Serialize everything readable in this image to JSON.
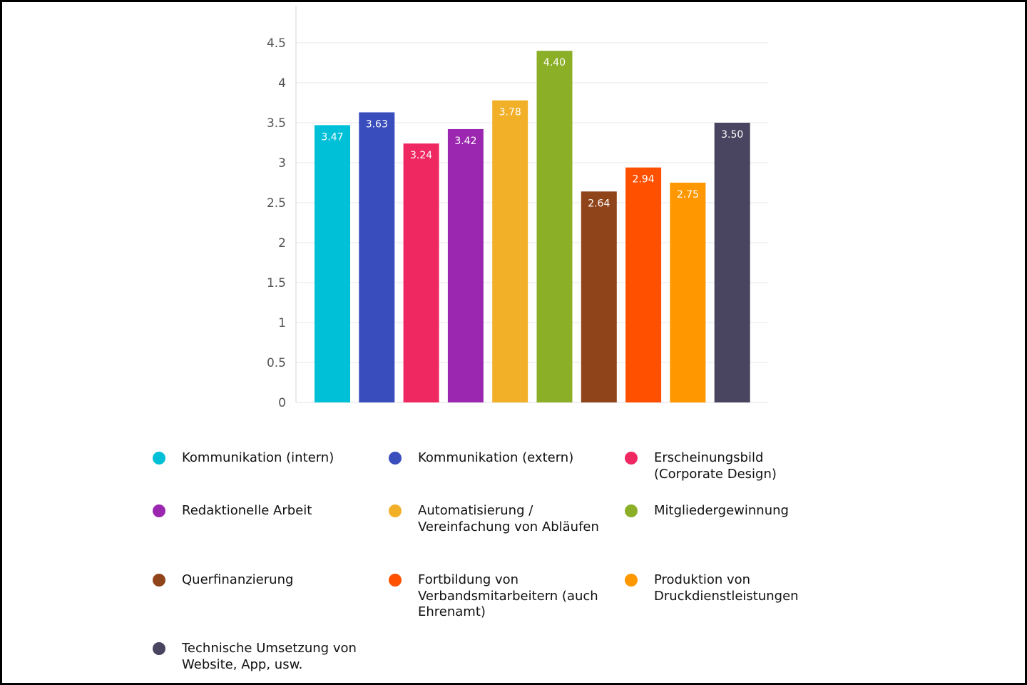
{
  "chart_data": {
    "type": "bar",
    "title": "",
    "xlabel": "",
    "ylabel": "",
    "ylim": [
      0,
      4.9
    ],
    "yticks": [
      0,
      0.5,
      1,
      1.5,
      2,
      2.5,
      3,
      3.5,
      4,
      4.5
    ],
    "ytick_labels": [
      "0",
      "0.5",
      "1",
      "1.5",
      "2",
      "2.5",
      "3",
      "3.5",
      "4",
      "4.5"
    ],
    "grid": true,
    "legend_position": "bottom",
    "categories": [
      "Kommunikation (intern)",
      "Kommunikation (extern)",
      "Erscheinungsbild (Corporate Design)",
      "Redaktionelle Arbeit",
      "Automatisierung / Vereinfachung von Abläufen",
      "Mitgliedergewinnung",
      "Querfinanzierung",
      "Fortbildung von Verbandsmitarbeitern (auch Ehrenamt)",
      "Produktion von Druckdienstleistungen",
      "Technische Umsetzung von Website, App, usw."
    ],
    "values": [
      3.47,
      3.63,
      3.24,
      3.42,
      3.78,
      4.4,
      2.64,
      2.94,
      2.75,
      3.5
    ],
    "value_labels": [
      "3.47",
      "3.63",
      "3.24",
      "3.42",
      "3.78",
      "4.40",
      "2.64",
      "2.94",
      "2.75",
      "3.50"
    ],
    "colors": [
      "#00c0d8",
      "#3a4dbd",
      "#f02862",
      "#9b27b0",
      "#f2b028",
      "#8caf28",
      "#90441a",
      "#ff5000",
      "#ff9800",
      "#49445f"
    ]
  }
}
